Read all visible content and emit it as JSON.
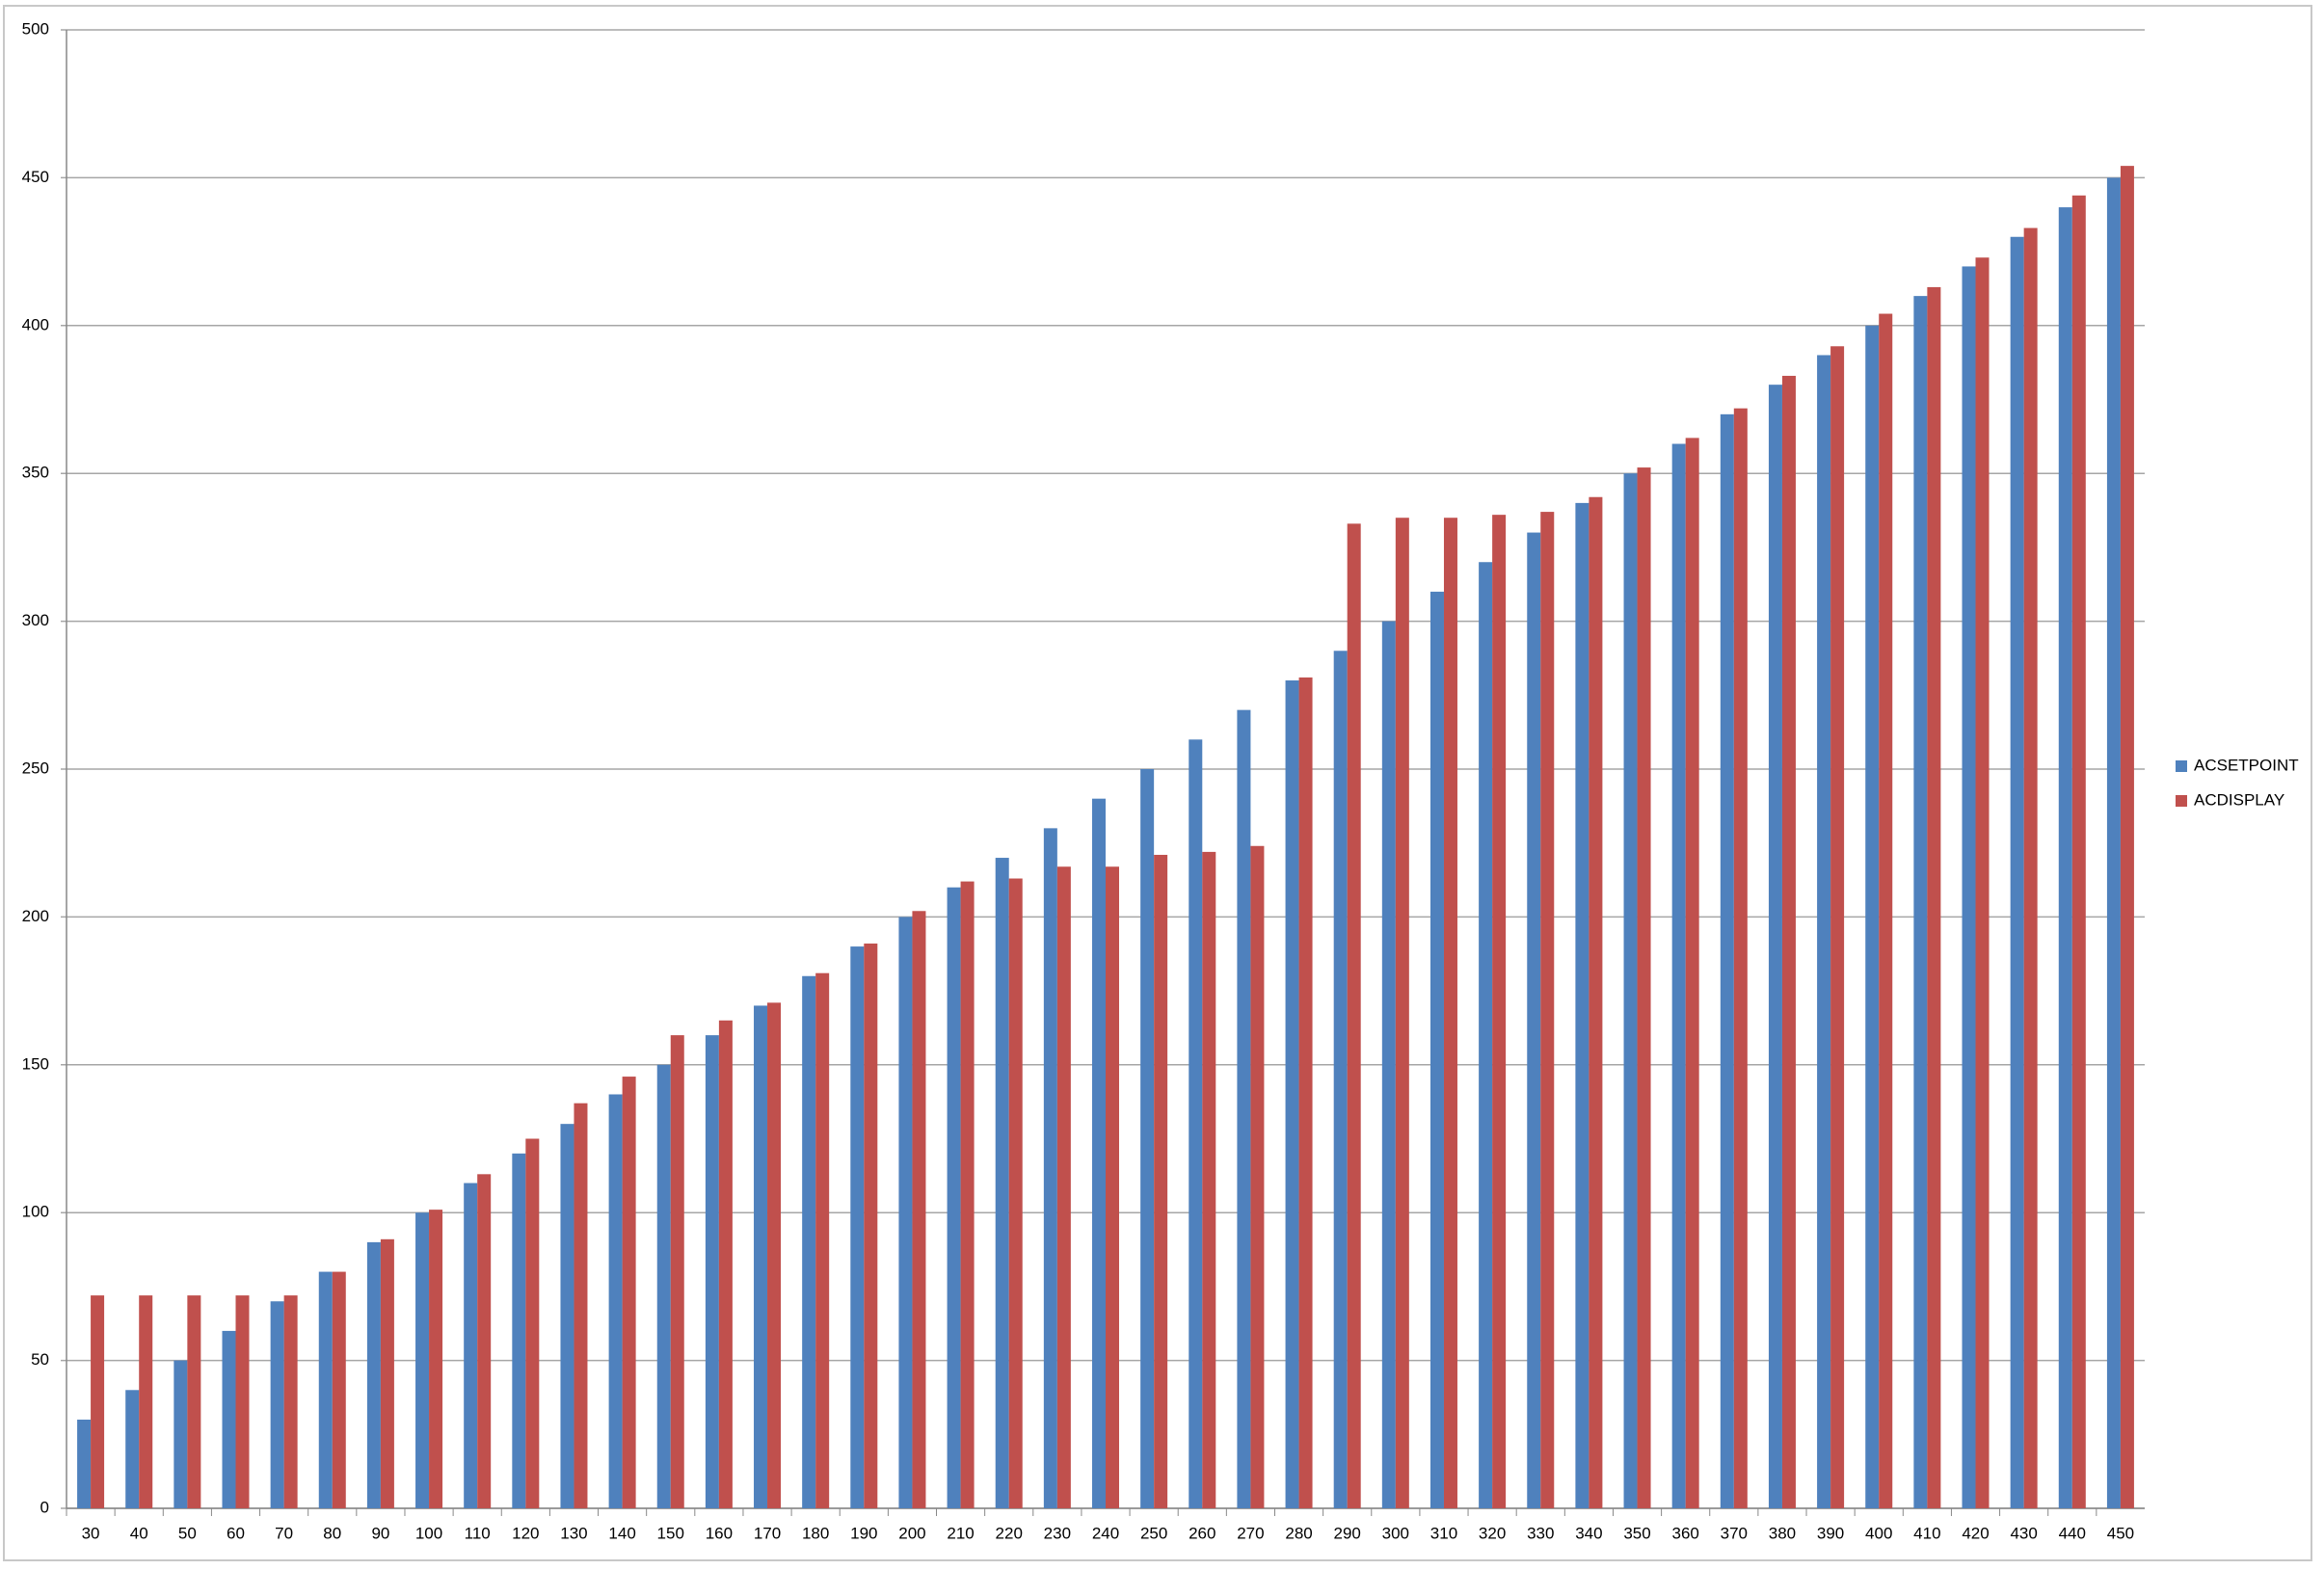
{
  "chart_data": {
    "type": "bar",
    "categories": [
      "30",
      "40",
      "50",
      "60",
      "70",
      "80",
      "90",
      "100",
      "110",
      "120",
      "130",
      "140",
      "150",
      "160",
      "170",
      "180",
      "190",
      "200",
      "210",
      "220",
      "230",
      "240",
      "250",
      "260",
      "270",
      "280",
      "290",
      "300",
      "310",
      "320",
      "330",
      "340",
      "350",
      "360",
      "370",
      "380",
      "390",
      "400",
      "410",
      "420",
      "430",
      "440",
      "450"
    ],
    "series": [
      {
        "name": "ACSETPOINT",
        "color": "#4f81bd",
        "values": [
          30,
          40,
          50,
          60,
          70,
          80,
          90,
          100,
          110,
          120,
          130,
          140,
          150,
          160,
          170,
          180,
          190,
          200,
          210,
          220,
          230,
          240,
          250,
          260,
          270,
          280,
          290,
          300,
          310,
          320,
          330,
          340,
          350,
          360,
          370,
          380,
          390,
          400,
          410,
          420,
          430,
          440,
          450
        ]
      },
      {
        "name": "ACDISPLAY",
        "color": "#c0504d",
        "values": [
          72,
          72,
          72,
          72,
          72,
          80,
          91,
          101,
          113,
          125,
          137,
          146,
          160,
          165,
          171,
          181,
          191,
          202,
          212,
          213,
          217,
          217,
          221,
          222,
          224,
          281,
          333,
          335,
          335,
          336,
          337,
          342,
          352,
          362,
          372,
          383,
          393,
          404,
          413,
          423,
          433,
          444,
          454
        ]
      }
    ],
    "ylim": [
      0,
      500
    ],
    "yticks": [
      0,
      50,
      100,
      150,
      200,
      250,
      300,
      350,
      400,
      450,
      500
    ],
    "grid": true,
    "legend": "right"
  }
}
